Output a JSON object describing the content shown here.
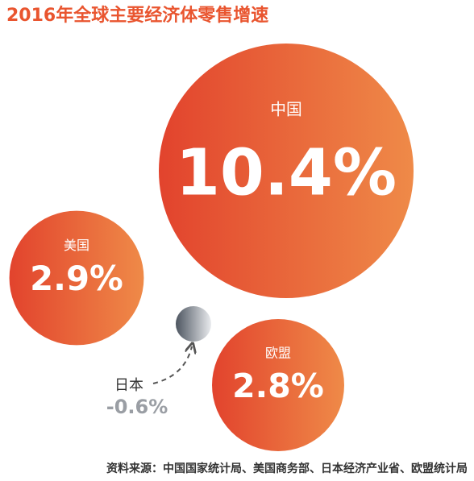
{
  "title": "2016年全球主要经济体零售增速",
  "chart_data": {
    "type": "bubble",
    "categories": [
      "中国",
      "美国",
      "日本",
      "欧盟"
    ],
    "values": [
      10.4,
      2.9,
      -0.6,
      2.8
    ],
    "value_labels": [
      "10.4%",
      "2.9%",
      "-0.6%",
      "2.8%"
    ]
  },
  "source": "资料来源：中国国家统计局、美国商务部、日本经济产业省、欧盟统计局"
}
